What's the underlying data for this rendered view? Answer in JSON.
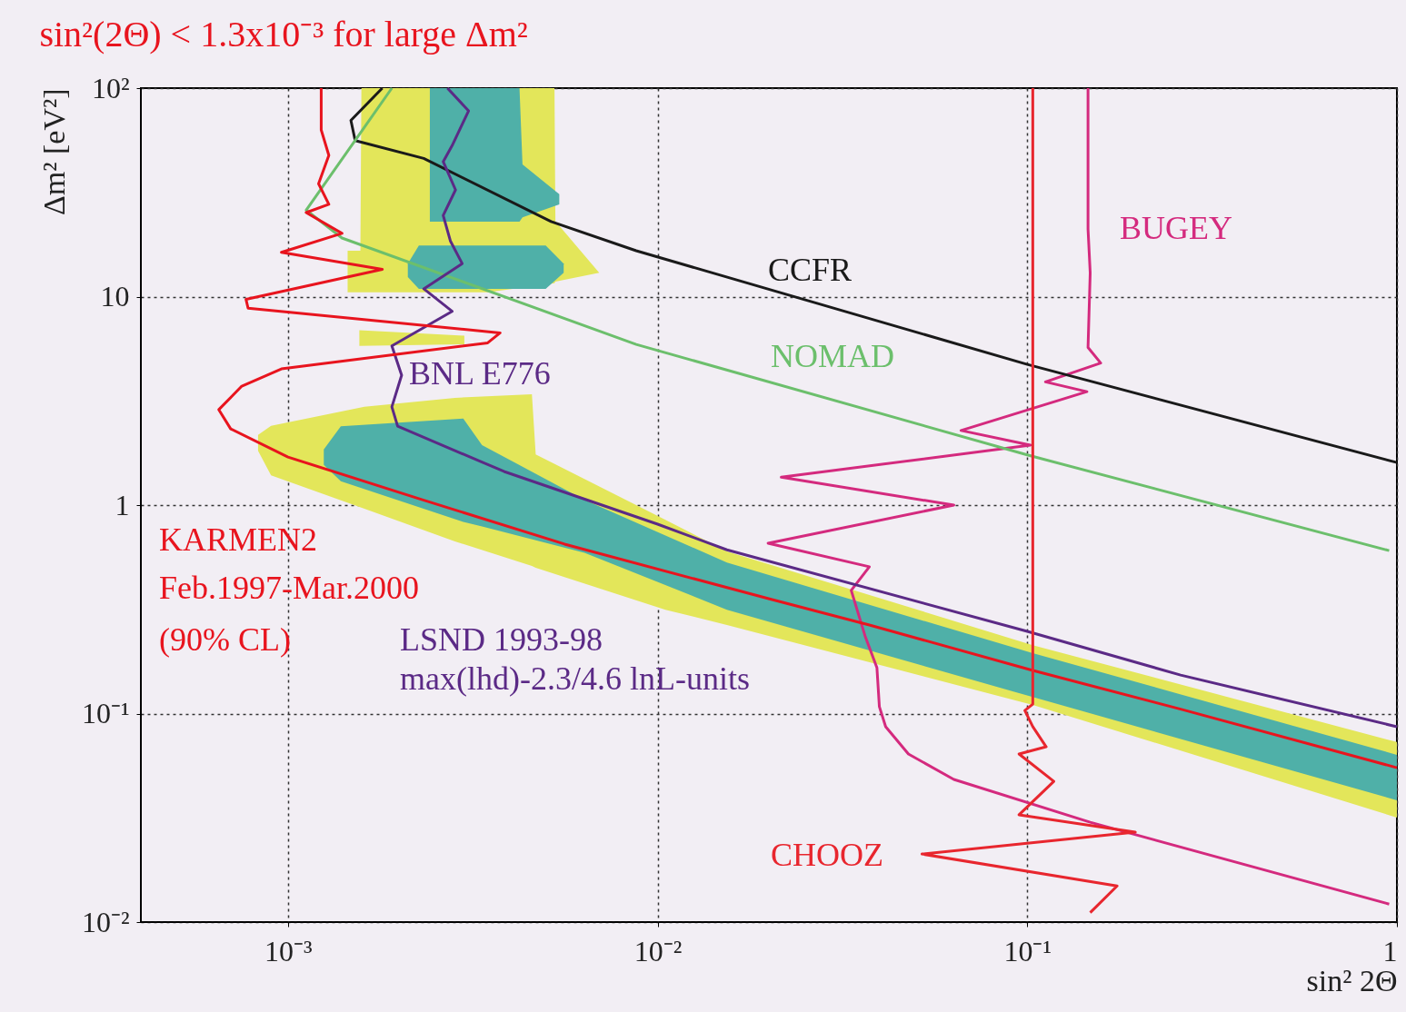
{
  "chart_data": {
    "type": "line",
    "title": "sin²(2Θ) < 1.3x10⁻³ for large Δm²",
    "xlabel": "sin² 2Θ",
    "ylabel": "Δm² [eV²]",
    "log": "xy",
    "grid": true,
    "xlim": [
      0.0004,
      1
    ],
    "ylim": [
      0.01,
      100
    ],
    "xticks": [
      {
        "value": 0.001,
        "label": "10⁻³"
      },
      {
        "value": 0.01,
        "label": "10⁻²"
      },
      {
        "value": 0.1,
        "label": "10⁻¹"
      },
      1
    ],
    "yticks": [
      {
        "value": 0.01,
        "label": "10⁻²"
      },
      {
        "value": 0.1,
        "label": "10⁻¹"
      },
      1,
      10,
      {
        "value": 100,
        "label": "10²"
      }
    ],
    "series": [
      {
        "type": "area",
        "color": "#e3e65a",
        "x": [
          0.00145,
          0.00157,
          0.00158,
          0.00347,
          0.00526,
          0.00529,
          0.00695
        ],
        "values": [
          null,
          null,
          null,
          null,
          null,
          null,
          null
        ],
        "lower": [
          10.5,
          10.5,
          10.5,
          10.5,
          11.6,
          11.8,
          13
        ],
        "upper": [
          16.6,
          16.6,
          100,
          100,
          100,
          23,
          13
        ]
      },
      {
        "type": "area",
        "color": "#e3e65a",
        "x": [
          0.00156,
          0.003
        ],
        "values": [
          null,
          null
        ],
        "lower": [
          5.8,
          5.9
        ],
        "upper": [
          6.9,
          6.5
        ]
      },
      {
        "type": "area",
        "color": "#e3e65a",
        "x": [
          0.00083,
          0.0009,
          0.00161,
          0.00283,
          0.00457,
          0.00468,
          0.0105,
          0.0154,
          0.1035,
          1
        ],
        "values": [
          null,
          null,
          null,
          null,
          null,
          null,
          null,
          null,
          null,
          null
        ],
        "lower": [
          1.82,
          1.39,
          0.96,
          0.67,
          0.51,
          0.5,
          0.315,
          0.266,
          0.11,
          0.0317
        ],
        "upper": [
          2.17,
          2.4,
          2.96,
          3.27,
          3.4,
          1.75,
          0.85,
          0.6,
          0.213,
          0.073
        ]
      },
      {
        "type": "area",
        "color": "#4fb0a8",
        "x": [
          0.00242,
          0.00423,
          0.00431,
          0.00542
        ],
        "values": [
          null,
          null,
          null,
          null
        ],
        "lower": [
          22.9,
          22.9,
          24,
          27.7
        ],
        "upper": [
          100,
          100,
          43,
          31
        ]
      },
      {
        "type": "area",
        "color": "#4fb0a8",
        "x": [
          0.00211,
          0.00226,
          0.00498,
          0.00557
        ],
        "values": [
          null,
          null,
          null,
          null
        ],
        "lower": [
          12.4,
          10.9,
          10.9,
          13
        ],
        "upper": [
          14.4,
          17.6,
          17.6,
          14.4
        ]
      },
      {
        "type": "area",
        "color": "#4fb0a8",
        "x": [
          0.00125,
          0.00139,
          0.00298,
          0.00335,
          0.00634,
          0.0154,
          0.1035,
          1
        ],
        "values": [
          null,
          null,
          null,
          null,
          null,
          null,
          null,
          null
        ],
        "lower": [
          1.56,
          1.3,
          0.83,
          0.79,
          0.59,
          0.315,
          0.12,
          0.0384
        ],
        "upper": [
          1.85,
          2.39,
          2.6,
          1.94,
          1.06,
          0.53,
          0.195,
          0.0634
        ]
      },
      {
        "name": "BUGEY",
        "color": "#d42a7e",
        "x": [
          0.146,
          0.146,
          0.148,
          0.146,
          0.158,
          0.112,
          0.145,
          0.0662,
          0.102,
          0.0216,
          0.0633,
          0.0199,
          0.0374,
          0.0334,
          0.0364,
          0.0392,
          0.0398,
          0.0414,
          0.0477,
          0.0633,
          0.148,
          0.953
        ],
        "values": [
          100,
          21.1,
          13,
          5.7,
          4.8,
          3.9,
          3.5,
          2.28,
          1.94,
          1.36,
          1.0,
          0.656,
          0.506,
          0.39,
          0.236,
          0.166,
          0.108,
          0.0865,
          0.064,
          0.0483,
          0.0301,
          0.0122
        ]
      },
      {
        "name": "CCFR",
        "color": "#1a1a1a",
        "x": [
          0.0018,
          0.00148,
          0.00152,
          0.00233,
          0.00515,
          0.00875,
          0.1,
          1
        ],
        "values": [
          100,
          70,
          56,
          46,
          22.9,
          16.6,
          4.73,
          1.6
        ]
      },
      {
        "name": "NOMAD",
        "color": "#6cbf6c",
        "x": [
          0.00191,
          0.00157,
          0.00112,
          0.0014,
          0.00875,
          0.1,
          0.953
        ],
        "values": [
          100,
          61,
          26,
          19.1,
          5.9,
          1.74,
          0.605
        ]
      },
      {
        "name": "BNL E776",
        "color": "#5b2a86",
        "x": [
          0.0027,
          0.00308,
          0.00278,
          0.00263,
          0.00284,
          0.00263,
          0.00275,
          0.00296,
          0.00233,
          0.00278,
          0.00191,
          0.00203,
          0.00191,
          0.00198,
          0.00384,
          0.01,
          0.0154,
          0.1,
          0.26,
          1
        ],
        "values": [
          100,
          77.8,
          53,
          44.4,
          32.5,
          24.5,
          18.5,
          14.4,
          10.9,
          8.5,
          5.8,
          4.2,
          2.96,
          2.39,
          1.45,
          0.81,
          0.61,
          0.248,
          0.153,
          0.0865
        ]
      },
      {
        "name": "KARMEN2",
        "color": "#e8141e",
        "x": [
          0.00123,
          0.00123,
          0.00129,
          0.00121,
          0.00129,
          0.00112,
          0.0014,
          0.00096,
          0.0018,
          0.00077,
          0.00078,
          0.00375,
          0.00347,
          0.00096,
          0.00075,
          0.00065,
          0.0007,
          0.001,
          0.00231,
          0.0056,
          0.0204,
          0.0374,
          0.1035,
          0.26,
          1
        ],
        "values": [
          100,
          63,
          47.6,
          34.8,
          27.7,
          25.3,
          20.1,
          16.3,
          13.5,
          9.7,
          8.8,
          6.7,
          6.0,
          4.5,
          3.72,
          2.87,
          2.32,
          1.7,
          1.06,
          0.65,
          0.352,
          0.266,
          0.161,
          0.105,
          0.055
        ]
      },
      {
        "name": "CHOOZ",
        "color": "#e8262e",
        "x": [
          0.1035,
          0.1035,
          0.0985,
          0.1035,
          0.1125,
          0.095,
          0.118,
          0.095,
          0.196,
          0.0519,
          0.175,
          0.148
        ],
        "values": [
          100,
          0.111,
          0.1035,
          0.0865,
          0.0693,
          0.064,
          0.0473,
          0.0327,
          0.027,
          0.0212,
          0.0149,
          0.0111
        ]
      }
    ],
    "annotations": [
      "Feb.1997-Mar.2000",
      "(90% CL)",
      "LSND 1993-98",
      "max(lhd)-2.3/4.6 lnL-units"
    ]
  }
}
